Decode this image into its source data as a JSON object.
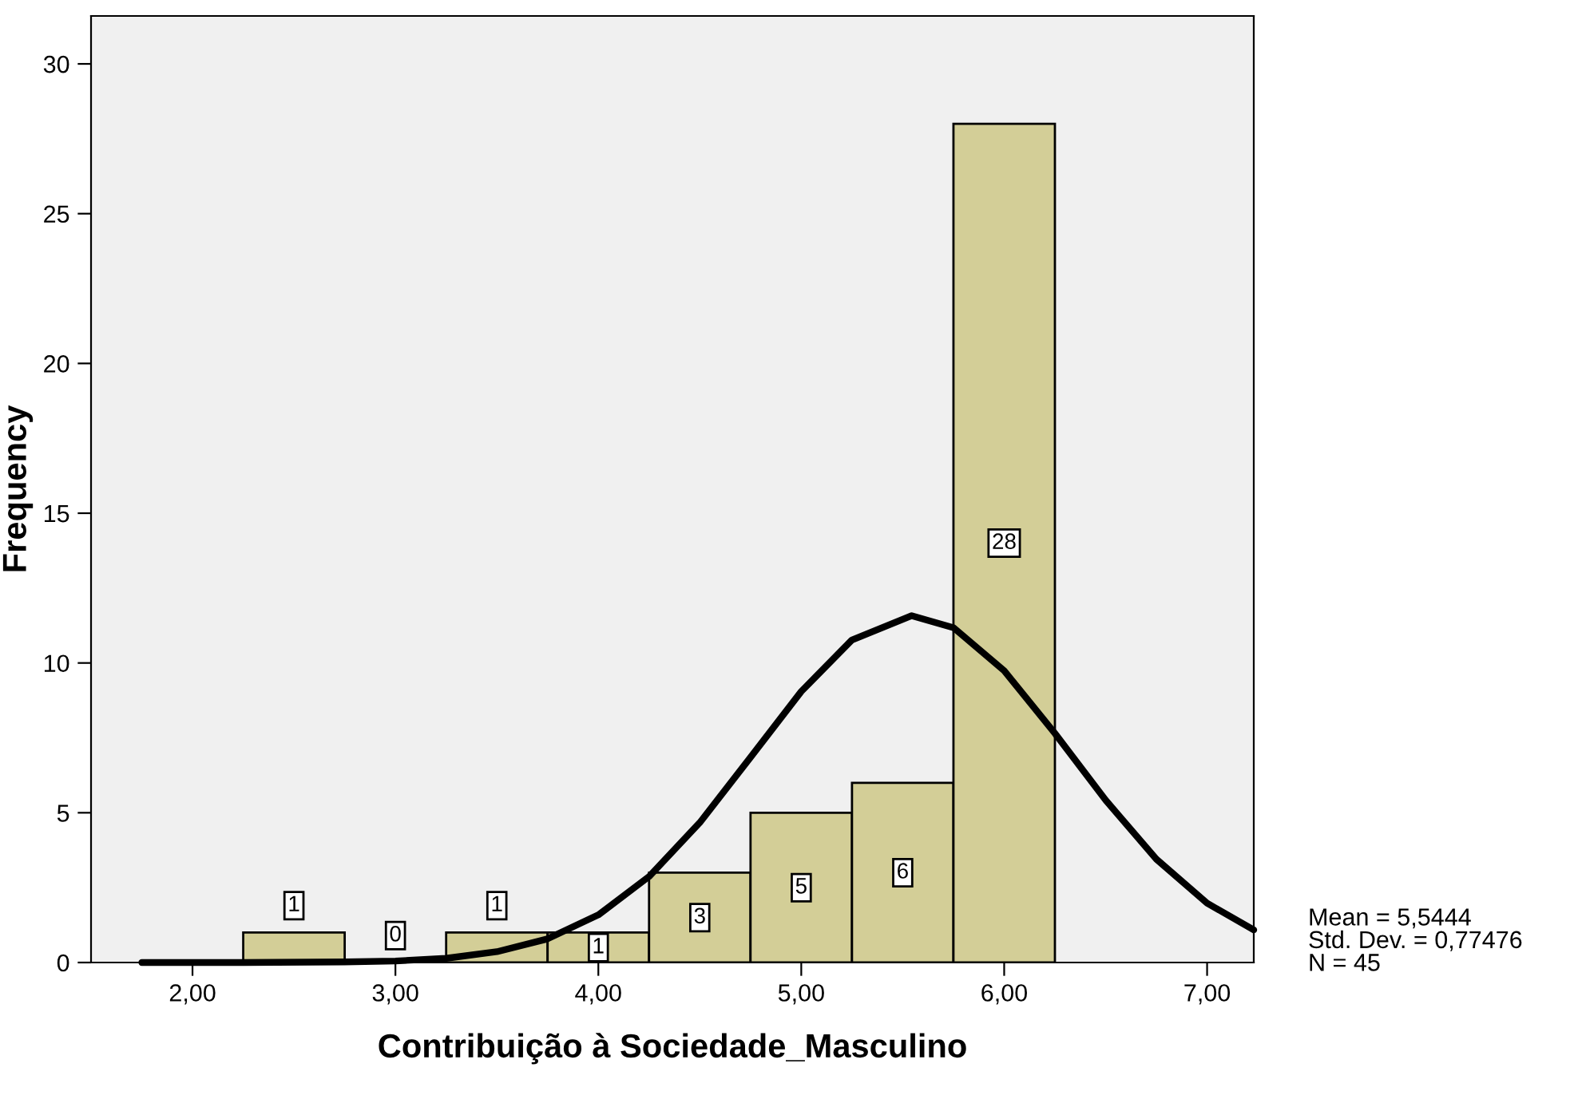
{
  "chart_data": {
    "type": "histogram",
    "xlabel": "Contribuição à Sociedade_Masculino",
    "ylabel": "Frequency",
    "bins": [
      2.25,
      2.75,
      3.25,
      3.75,
      4.25,
      4.75,
      5.25,
      5.75,
      6.25
    ],
    "values": [
      1,
      0,
      1,
      1,
      3,
      5,
      6,
      28
    ],
    "color": "#d3ce97",
    "value_labels": [
      "1",
      "0",
      "1",
      "1",
      "3",
      "5",
      "6",
      "28"
    ],
    "series": [
      {
        "type": "line",
        "color": "#000000",
        "x": [
          1.75,
          2.25,
          2.75,
          3.0,
          3.25,
          3.5,
          3.75,
          4.0,
          4.25,
          4.5,
          4.75,
          5.0,
          5.25,
          5.5444,
          5.75,
          6.0,
          6.25,
          6.5,
          6.75,
          7.0,
          7.23
        ],
        "values": [
          0.0,
          0.0,
          0.02,
          0.05,
          0.14,
          0.36,
          0.79,
          1.59,
          2.87,
          4.67,
          6.85,
          9.05,
          10.77,
          11.58,
          11.18,
          9.74,
          7.65,
          5.42,
          3.45,
          1.98,
          1.09
        ]
      }
    ],
    "marker": "none",
    "line_style": "solid",
    "grid": false,
    "legend": false,
    "xlim": [
      1.5,
      7.23
    ],
    "ylim": [
      0,
      31.6
    ],
    "xticks": [
      {
        "value": 2,
        "label": "2,00"
      },
      {
        "value": 3,
        "label": "3,00"
      },
      {
        "value": 4,
        "label": "4,00"
      },
      {
        "value": 5,
        "label": "5,00"
      },
      {
        "value": 6,
        "label": "6,00"
      },
      {
        "value": 7,
        "label": "7,00"
      }
    ],
    "yticks": [
      0,
      5,
      10,
      15,
      20,
      25,
      30
    ],
    "annotations": [
      "Mean = 5,5444\nStd. Dev. = 0,77476\nN = 45"
    ]
  }
}
